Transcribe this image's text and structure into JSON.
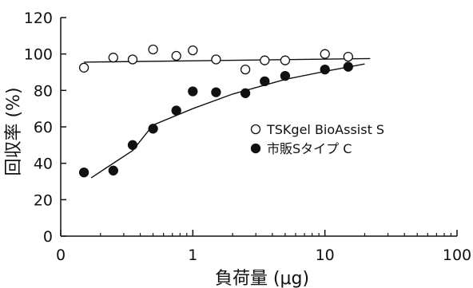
{
  "chart_data": {
    "type": "scatter",
    "xlabel": "負荷量 (μg)",
    "ylabel": "回収率 (%)",
    "x_scale": "log",
    "xlim": [
      0.1,
      100
    ],
    "ylim": [
      0,
      120
    ],
    "x_ticks": [
      {
        "value": 0.1,
        "label": "0"
      },
      {
        "value": 1,
        "label": "1"
      },
      {
        "value": 10,
        "label": "10"
      },
      {
        "value": 100,
        "label": "100"
      }
    ],
    "y_ticks": [
      0,
      20,
      40,
      60,
      80,
      100,
      120
    ],
    "grid": false,
    "legend_position": "right",
    "series": [
      {
        "name": "TSKgel BioAssist S",
        "marker": "open-circle",
        "x": [
          0.15,
          0.25,
          0.35,
          0.5,
          0.75,
          1.0,
          1.5,
          2.5,
          3.5,
          5.0,
          10.0,
          15.0
        ],
        "y": [
          92.5,
          98,
          97,
          102.5,
          99,
          102,
          97,
          91.5,
          96.5,
          96.5,
          100,
          98.5
        ],
        "trend_x": [
          0.15,
          22
        ],
        "trend_y": [
          95.5,
          97.5
        ]
      },
      {
        "name": "市販Sタイプ C",
        "marker": "filled-circle",
        "x": [
          0.15,
          0.25,
          0.35,
          0.5,
          0.75,
          1.0,
          1.5,
          2.5,
          3.5,
          5.0,
          10.0,
          15.0
        ],
        "y": [
          35,
          36,
          50,
          59,
          69,
          79.5,
          79,
          78.5,
          85,
          88,
          91.5,
          93
        ],
        "trend_x": [
          0.17,
          0.35,
          0.5,
          1.0,
          2.0,
          5.0,
          10.0,
          20.0
        ],
        "trend_y": [
          32,
          47,
          61,
          70,
          78,
          86,
          90.5,
          94.5
        ]
      }
    ]
  }
}
